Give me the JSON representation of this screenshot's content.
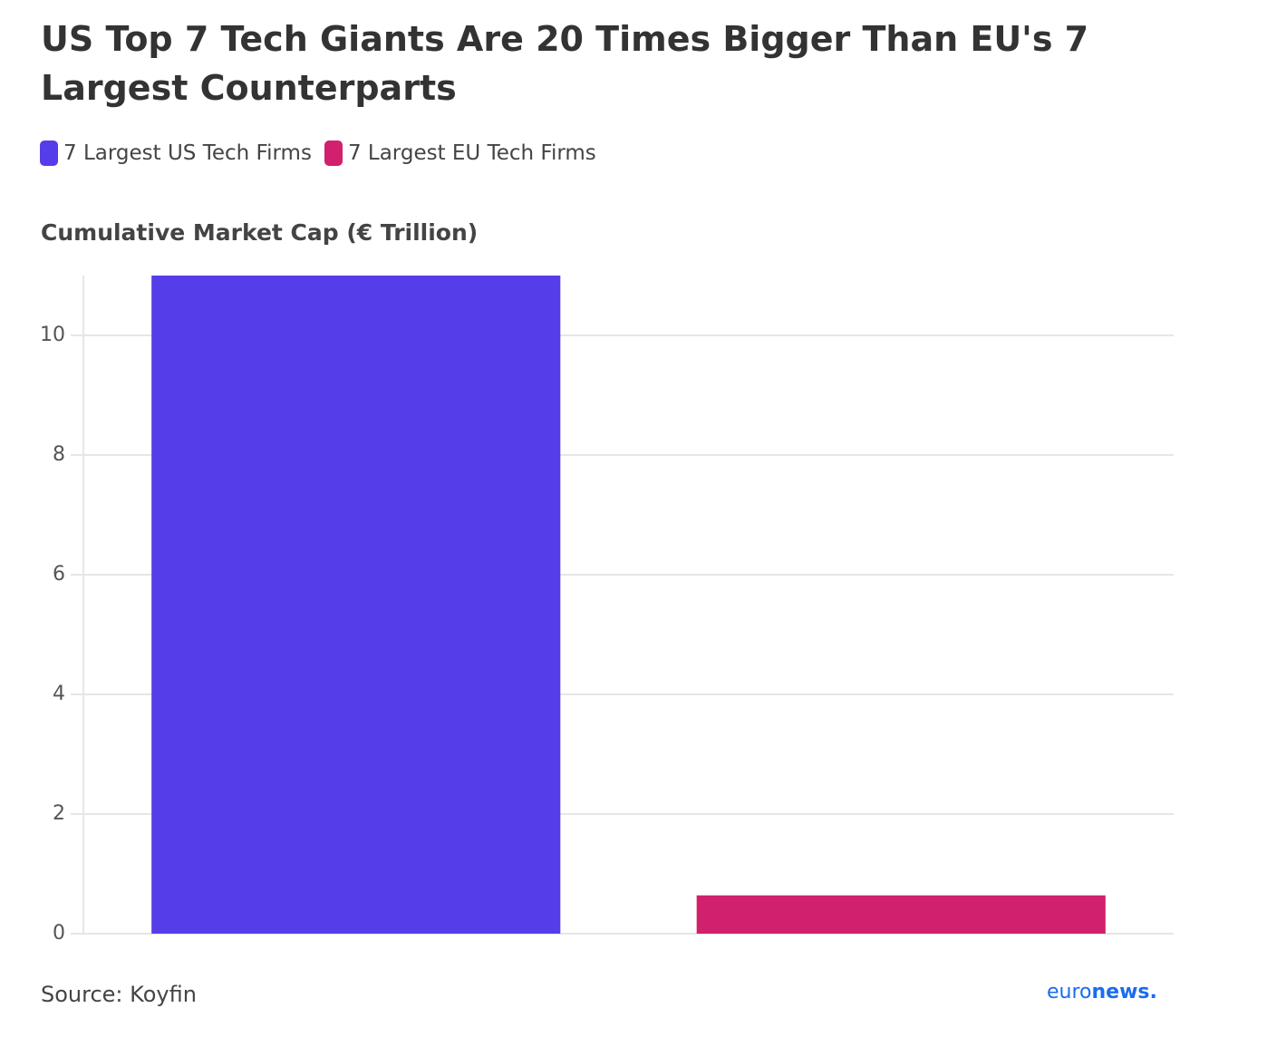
{
  "chart_data": {
    "type": "bar",
    "title": "US Top 7 Tech Giants Are 20 Times Bigger Than EU's 7 Largest Counterparts",
    "y_label": "Cumulative Market Cap (€ Trillion)",
    "categories": [
      null
    ],
    "series": [
      {
        "name": "7 Largest US Tech Firms",
        "color": "#553de9",
        "values": [
          11.0
        ]
      },
      {
        "name": "7 Largest EU Tech Firms",
        "color": "#d1206d",
        "values": [
          0.64
        ]
      }
    ],
    "ylim": [
      0,
      11
    ],
    "yticks": [
      0,
      2,
      4,
      6,
      8,
      10
    ],
    "grid": true,
    "source": "Source: Koyfin",
    "logo": [
      "euro",
      "news."
    ]
  }
}
